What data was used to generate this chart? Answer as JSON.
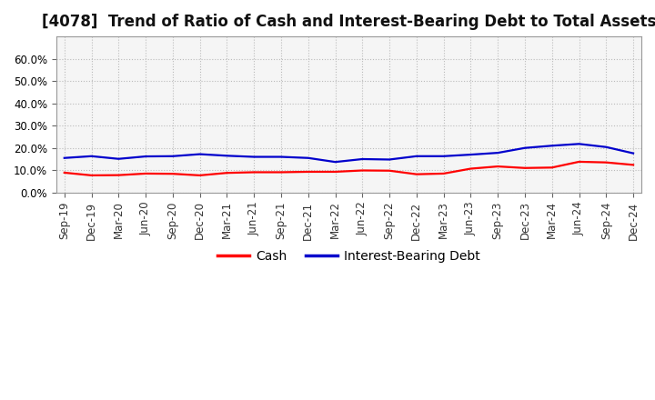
{
  "title": "[4078]  Trend of Ratio of Cash and Interest-Bearing Debt to Total Assets",
  "x_labels": [
    "Sep-19",
    "Dec-19",
    "Mar-20",
    "Jun-20",
    "Sep-20",
    "Dec-20",
    "Mar-21",
    "Jun-21",
    "Sep-21",
    "Dec-21",
    "Mar-22",
    "Jun-22",
    "Sep-22",
    "Dec-22",
    "Mar-23",
    "Jun-23",
    "Sep-23",
    "Dec-23",
    "Mar-24",
    "Jun-24",
    "Sep-24",
    "Dec-24"
  ],
  "cash": [
    0.089,
    0.077,
    0.078,
    0.085,
    0.084,
    0.077,
    0.088,
    0.091,
    0.091,
    0.093,
    0.093,
    0.099,
    0.098,
    0.082,
    0.085,
    0.107,
    0.117,
    0.11,
    0.112,
    0.138,
    0.135,
    0.124
  ],
  "interest_bearing_debt": [
    0.155,
    0.163,
    0.151,
    0.162,
    0.163,
    0.172,
    0.165,
    0.16,
    0.16,
    0.155,
    0.137,
    0.15,
    0.148,
    0.163,
    0.163,
    0.17,
    0.178,
    0.2,
    0.21,
    0.218,
    0.204,
    0.176
  ],
  "cash_color": "#ff0000",
  "ibd_color": "#0000cc",
  "ylim": [
    0,
    0.7
  ],
  "yticks": [
    0.0,
    0.1,
    0.2,
    0.3,
    0.4,
    0.5,
    0.6
  ],
  "background_color": "#ffffff",
  "plot_bg_color": "#f5f5f5",
  "grid_color": "#bbbbbb",
  "legend_cash": "Cash",
  "legend_ibd": "Interest-Bearing Debt",
  "title_fontsize": 12,
  "tick_fontsize": 8.5,
  "legend_fontsize": 10,
  "line_width": 1.6
}
